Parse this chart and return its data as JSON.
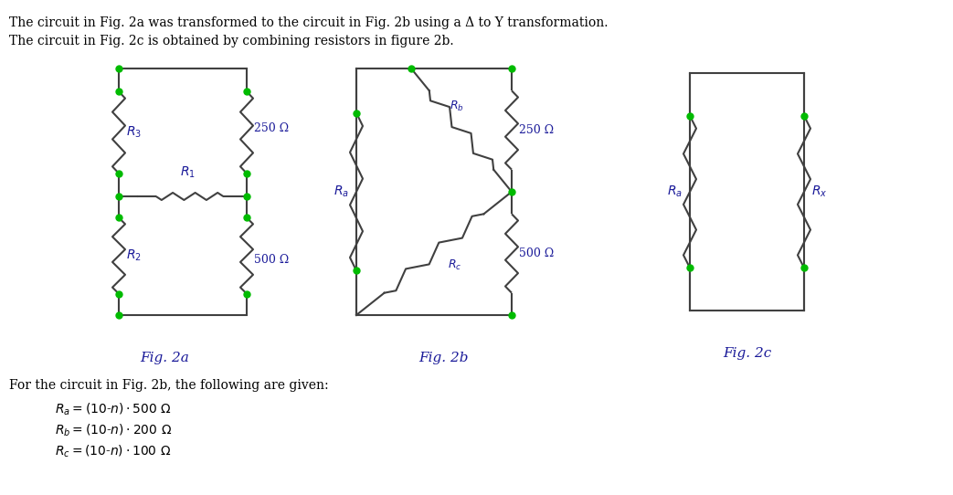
{
  "title_line1": "The circuit in Fig. 2a was transformed to the circuit in Fig. 2b using a Δ to Y transformation.",
  "title_line2": "The circuit in Fig. 2c is obtained by combining resistors in figure 2b.",
  "fig2a_label": "Fig. 2a",
  "fig2b_label": "Fig. 2b",
  "fig2c_label": "Fig. 2c",
  "wire_color": "#404040",
  "node_color": "#00bb00",
  "text_color": "#1a1a99",
  "background": "#ffffff",
  "formula_intro": "For the circuit in Fig. 2b, the following are given:",
  "formula_Ra": "R_a = (10-n)·500 Ω",
  "formula_Rb": "R_b = (10-n)·200 Ω",
  "formula_Rc": "R_c = (10-n)·100 Ω"
}
